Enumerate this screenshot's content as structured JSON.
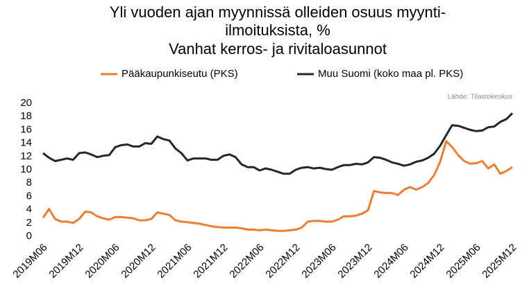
{
  "chart_data": {
    "type": "line",
    "title": [
      "Yli vuoden ajan myynnissä olleiden osuus myynti-",
      "ilmoituksista, %",
      "Vanhat kerros- ja rivitaloasunnot"
    ],
    "source": "Lähde: Tilastokeskus",
    "categories": [
      "2019M06",
      null,
      null,
      null,
      null,
      null,
      "2019M12",
      null,
      null,
      null,
      null,
      null,
      "2020M06",
      null,
      null,
      null,
      null,
      null,
      "2020M12",
      null,
      null,
      null,
      null,
      null,
      "2021M06",
      null,
      null,
      null,
      null,
      null,
      "2021M12",
      null,
      null,
      null,
      null,
      null,
      "2022M06",
      null,
      null,
      null,
      null,
      null,
      "2022M12",
      null,
      null,
      null,
      null,
      null,
      "2023M06",
      null,
      null,
      null,
      null,
      null,
      "2023M12",
      null,
      null,
      null,
      null,
      null,
      "2024M06",
      null,
      null,
      null,
      null,
      null,
      "2024M12",
      null,
      null,
      null,
      null,
      null,
      "2025M06",
      null,
      null,
      null,
      null,
      null,
      "2025M12"
    ],
    "series": [
      {
        "name": "Pääkaupunkiseutu (PKS)",
        "color": "#ed7d31",
        "values": [
          2.8,
          4.1,
          2.6,
          2.2,
          2.2,
          2.0,
          2.6,
          3.7,
          3.6,
          3.0,
          2.7,
          2.5,
          2.9,
          2.9,
          2.8,
          2.7,
          2.4,
          2.4,
          2.6,
          3.6,
          3.4,
          3.2,
          2.4,
          2.2,
          2.1,
          2.0,
          1.9,
          1.7,
          1.5,
          1.4,
          1.3,
          1.3,
          1.3,
          1.2,
          1.0,
          1.0,
          0.9,
          1.0,
          0.9,
          0.8,
          0.8,
          0.9,
          1.0,
          1.3,
          2.2,
          2.3,
          2.3,
          2.2,
          2.2,
          2.5,
          3.0,
          3.0,
          3.1,
          3.4,
          3.9,
          6.8,
          6.6,
          6.5,
          6.5,
          6.2,
          7.0,
          7.4,
          7.0,
          7.4,
          8.0,
          9.2,
          11.2,
          14.3,
          13.4,
          12.2,
          11.3,
          10.9,
          11.0,
          11.3,
          10.2,
          10.8,
          9.4,
          9.8,
          10.4
        ]
      },
      {
        "name": "Muu Suomi (koko maa pl. PKS)",
        "color": "#262626",
        "values": [
          12.5,
          11.8,
          11.3,
          11.5,
          11.7,
          11.5,
          12.5,
          12.6,
          12.3,
          11.9,
          12.1,
          12.2,
          13.4,
          13.7,
          13.8,
          13.5,
          13.5,
          14.0,
          13.9,
          15.0,
          14.6,
          14.4,
          13.2,
          12.5,
          11.4,
          11.7,
          11.7,
          11.7,
          11.5,
          11.5,
          12.1,
          12.3,
          11.9,
          10.8,
          10.4,
          10.4,
          9.9,
          10.2,
          10.0,
          9.7,
          9.4,
          9.4,
          10.0,
          10.3,
          10.4,
          10.2,
          10.3,
          10.1,
          10.0,
          10.4,
          10.7,
          10.7,
          10.9,
          10.8,
          11.1,
          11.9,
          11.8,
          11.5,
          11.1,
          10.9,
          10.6,
          10.8,
          11.2,
          11.4,
          11.8,
          12.4,
          13.6,
          15.2,
          16.7,
          16.6,
          16.3,
          16.0,
          15.8,
          15.9,
          16.4,
          16.5,
          17.2,
          17.6,
          18.5
        ]
      }
    ],
    "ylim": [
      0,
      20
    ],
    "yticks": [
      0,
      2,
      4,
      6,
      8,
      10,
      12,
      14,
      16,
      18,
      20
    ],
    "grid": false,
    "legend": "top"
  }
}
